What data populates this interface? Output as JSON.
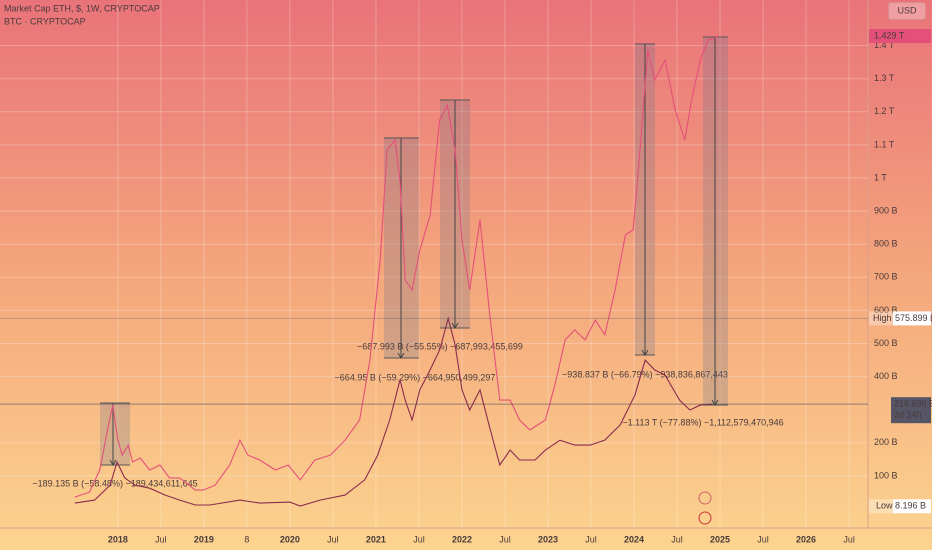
{
  "chart_data": {
    "type": "line",
    "series": [
      {
        "name": "Market Cap ETH, $, 1W, CRYPTOCAP",
        "color": "#8a2b4f",
        "x": [
          2017.5,
          2017.73,
          2017.91,
          2017.99,
          2018.08,
          2018.2,
          2018.37,
          2018.55,
          2018.72,
          2018.9,
          2019.07,
          2019.42,
          2019.65,
          2020.0,
          2020.12,
          2020.35,
          2020.64,
          2020.87,
          2021.02,
          2021.16,
          2021.28,
          2021.34,
          2021.42,
          2021.51,
          2021.63,
          2021.74,
          2021.84,
          2021.92,
          2022.0,
          2022.09,
          2022.21,
          2022.33,
          2022.44,
          2022.56,
          2022.67,
          2022.85,
          2022.97,
          2023.14,
          2023.31,
          2023.49,
          2023.66,
          2023.84,
          2024.01,
          2024.13,
          2024.24,
          2024.36,
          2024.53,
          2024.65,
          2024.77,
          2024.91
        ],
        "values": [
          18,
          27,
          72,
          142,
          94,
          72,
          63,
          42,
          27,
          12,
          12,
          27,
          18,
          21,
          9,
          27,
          42,
          88,
          163,
          269,
          390,
          329,
          269,
          360,
          420,
          480,
          576,
          496,
          360,
          299,
          360,
          239,
          133,
          178,
          148,
          148,
          178,
          208,
          193,
          193,
          208,
          254,
          344,
          450,
          420,
          405,
          329,
          299,
          314,
          317
        ]
      },
      {
        "name": "BTC · CRYPTOCAP",
        "color": "#e4507a",
        "x": [
          2017.5,
          2017.67,
          2017.79,
          2017.88,
          2017.94,
          2018.0,
          2018.05,
          2018.12,
          2018.17,
          2018.26,
          2018.37,
          2018.49,
          2018.6,
          2018.72,
          2018.9,
          2018.99,
          2019.13,
          2019.3,
          2019.42,
          2019.51,
          2019.65,
          2019.83,
          2019.98,
          2020.12,
          2020.29,
          2020.47,
          2020.64,
          2020.81,
          2020.93,
          2021.05,
          2021.13,
          2021.22,
          2021.28,
          2021.34,
          2021.42,
          2021.51,
          2021.63,
          2021.74,
          2021.83,
          2021.92,
          2022.0,
          2022.09,
          2022.21,
          2022.33,
          2022.44,
          2022.56,
          2022.67,
          2022.79,
          2022.97,
          2023.08,
          2023.2,
          2023.31,
          2023.43,
          2023.55,
          2023.66,
          2023.78,
          2023.9,
          2023.99,
          2024.07,
          2024.16,
          2024.24,
          2024.36,
          2024.48,
          2024.59,
          2024.67,
          2024.77,
          2024.86,
          2024.94,
          2024.98
        ],
        "values": [
          36,
          51,
          118,
          239,
          314,
          208,
          163,
          193,
          142,
          154,
          118,
          133,
          94,
          94,
          57,
          57,
          72,
          133,
          208,
          163,
          148,
          118,
          133,
          88,
          148,
          163,
          208,
          269,
          450,
          752,
          1085,
          1115,
          994,
          692,
          662,
          782,
          888,
          1175,
          1220,
          1085,
          813,
          662,
          873,
          571,
          329,
          329,
          269,
          239,
          269,
          375,
          511,
          541,
          511,
          571,
          526,
          662,
          828,
          843,
          1085,
          1387,
          1296,
          1356,
          1205,
          1115,
          1236,
          1356,
          1417,
          1423,
          1429
        ]
      }
    ],
    "xlim": [
      2016.63,
      2026.72
    ],
    "xticks": [
      2018,
      {
        "value": 2018.5,
        "label": "Jul"
      },
      2019,
      {
        "value": 2019.5,
        "label": "8"
      },
      2020,
      {
        "value": 2020.5,
        "label": "Jul"
      },
      2021,
      {
        "value": 2021.5,
        "label": "Jul"
      },
      2022,
      {
        "value": 2022.5,
        "label": "Jul"
      },
      2023,
      {
        "value": 2023.5,
        "label": "Jul"
      },
      2024,
      {
        "value": 2024.5,
        "label": "Jul"
      },
      2025,
      {
        "value": 2025.5,
        "label": "Jul"
      },
      2026,
      {
        "value": 2026.5,
        "label": "Jul"
      }
    ],
    "ylim": [
      -33.2,
      1537.8
    ],
    "yticks": [
      {
        "value": 100,
        "label": "100 B"
      },
      {
        "value": 200,
        "label": "200 B"
      },
      {
        "value": 400,
        "label": "400 B"
      },
      {
        "value": 500,
        "label": "500 B"
      },
      {
        "value": 600,
        "label": "600 B"
      },
      {
        "value": 700,
        "label": "700 B"
      },
      {
        "value": 800,
        "label": "800 B"
      },
      {
        "value": 900,
        "label": "900 B"
      },
      {
        "value": 1000,
        "label": "1 T"
      },
      {
        "value": 1100,
        "label": "1.1 T"
      },
      {
        "value": 1200,
        "label": "1.2 T"
      },
      {
        "value": 1300,
        "label": "1.3 T"
      },
      {
        "value": 1400,
        "label": "1.4 T"
      }
    ],
    "grid": true,
    "currency": "USD",
    "last": {
      "value": 1429,
      "label": "1.429 T"
    },
    "current": {
      "value": 316.696,
      "label": "316.696 B",
      "countdown": "3d 14h"
    },
    "high": {
      "name": "High",
      "value": 575.899,
      "label": "575.899 B"
    },
    "low": {
      "name": "Low",
      "value": 8.196,
      "label": "8.196 B"
    },
    "annotations": [
      "−189.135 B (−58.48%) −189,434,611,645",
      "−664.95 B (−59.29%) −664,950,499,297",
      "−687.993 B (−55.55%) −687,993,455,699",
      "−938.837 B (−66.79%) −938,836,867,443",
      "−1.113 T (−77.88%) −1,112,579,470,946"
    ]
  }
}
